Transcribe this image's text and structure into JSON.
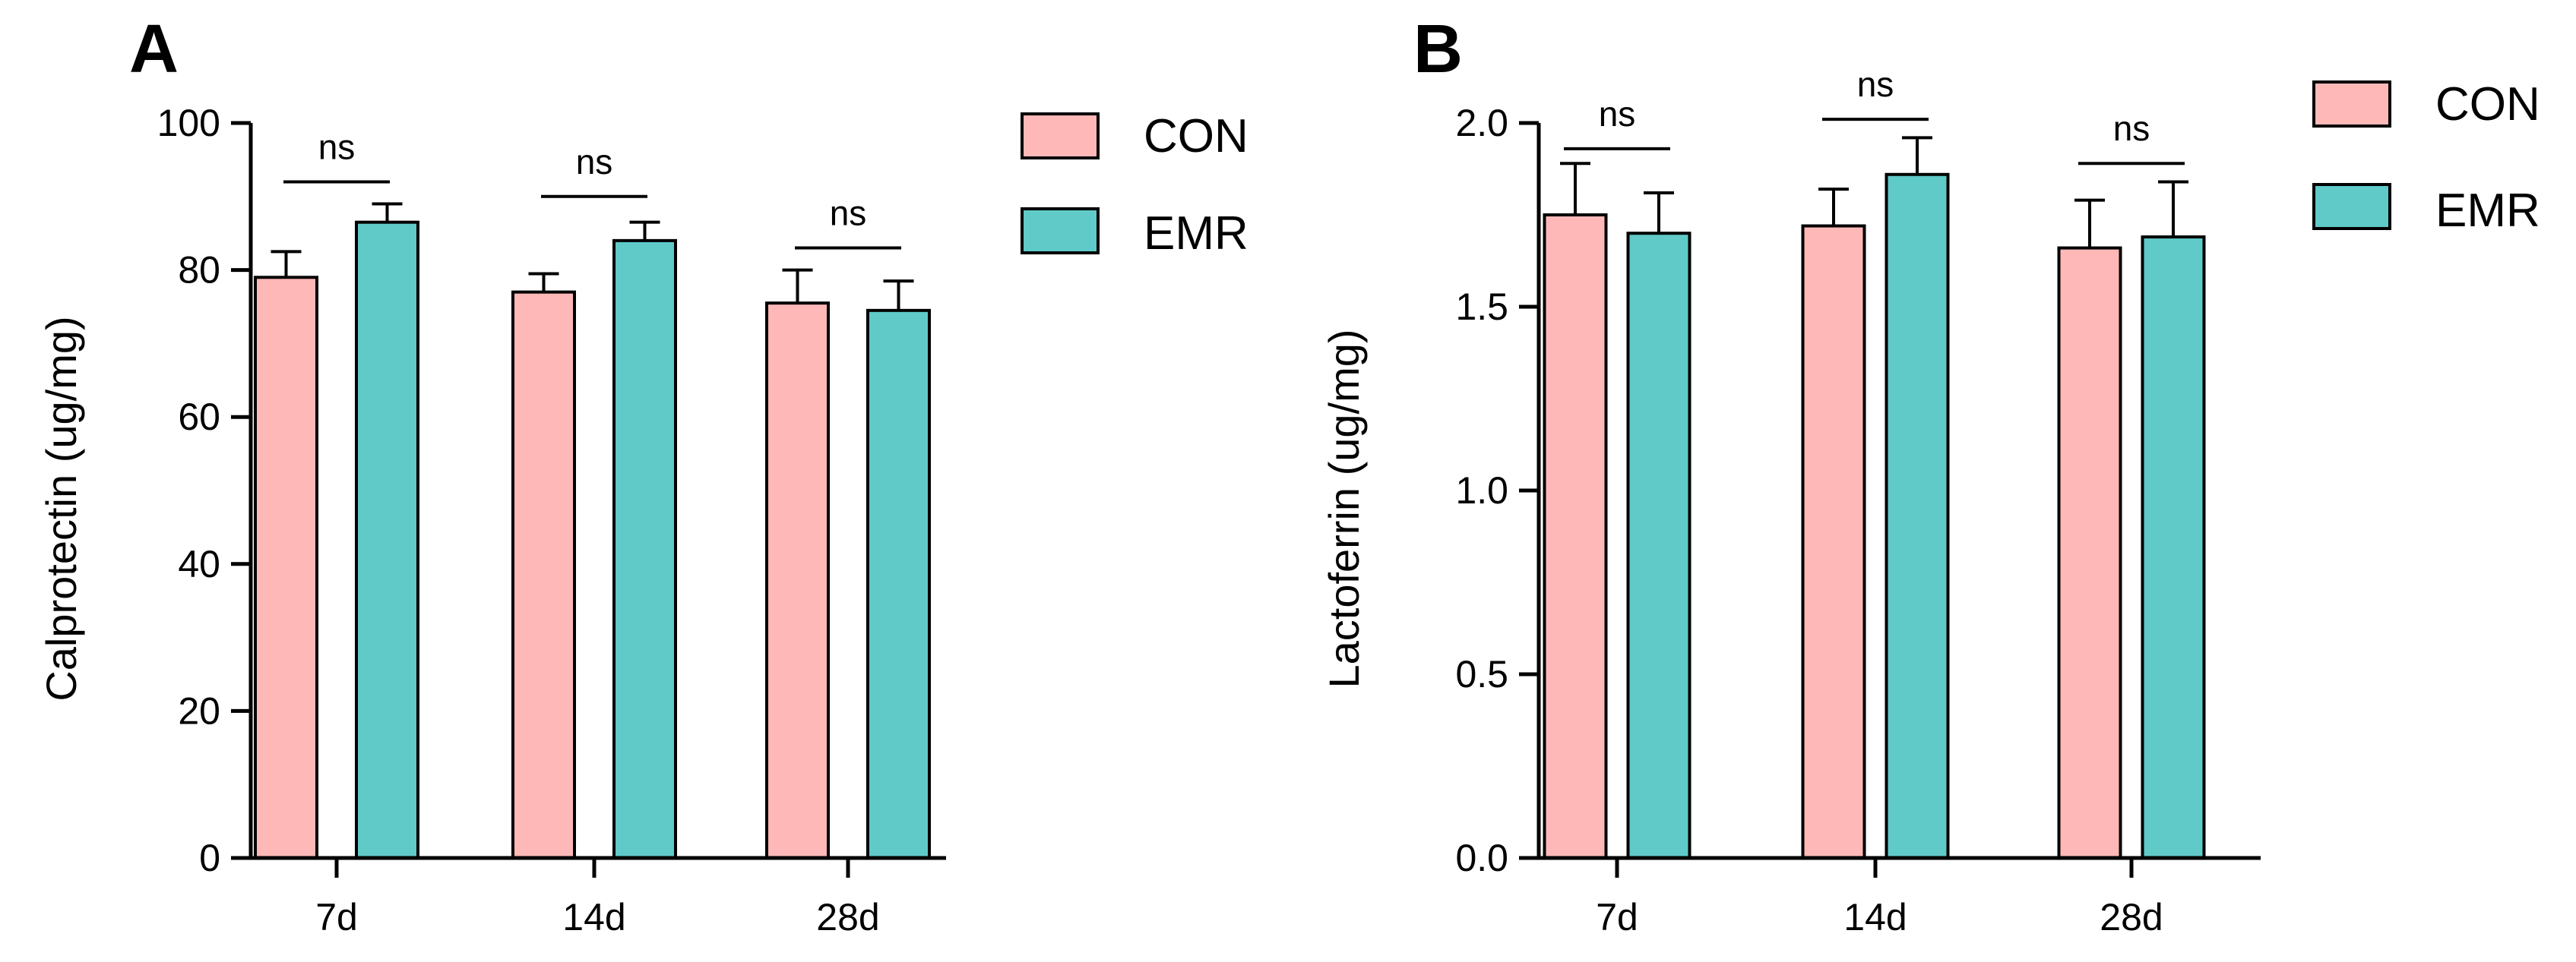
{
  "figure": {
    "legend": [
      {
        "name": "CON",
        "color": "#FFB8B8"
      },
      {
        "name": "EMR",
        "color": "#5FCAC8"
      }
    ]
  },
  "chart_data": [
    {
      "type": "bar",
      "panel": "A",
      "categories": [
        "7d",
        "14d",
        "28d"
      ],
      "series": [
        {
          "name": "CON",
          "values": [
            79,
            77,
            75.5
          ],
          "errors": [
            3.5,
            2.5,
            4.5
          ]
        },
        {
          "name": "EMR",
          "values": [
            86.5,
            84,
            74.5
          ],
          "errors": [
            2.5,
            2.5,
            4
          ]
        }
      ],
      "ylabel": "Calprotectin (ug/mg)",
      "xlabel": "",
      "ylim": [
        0,
        100
      ],
      "yticks": [
        0,
        20,
        40,
        60,
        80,
        100
      ],
      "ytick_labels": [
        "0",
        "20",
        "40",
        "60",
        "80",
        "100"
      ],
      "significance": [
        {
          "category": "7d",
          "label": "ns",
          "level": 92
        },
        {
          "category": "14d",
          "label": "ns",
          "level": 90
        },
        {
          "category": "28d",
          "label": "ns",
          "level": 83
        }
      ],
      "legend_position": "right"
    },
    {
      "type": "bar",
      "panel": "B",
      "categories": [
        "7d",
        "14d",
        "28d"
      ],
      "series": [
        {
          "name": "CON",
          "values": [
            1.75,
            1.72,
            1.66
          ],
          "errors": [
            0.14,
            0.1,
            0.13
          ]
        },
        {
          "name": "EMR",
          "values": [
            1.7,
            1.86,
            1.69
          ],
          "errors": [
            0.11,
            0.1,
            0.15
          ]
        }
      ],
      "ylabel": "Lactoferrin (ug/mg)",
      "xlabel": "",
      "ylim": [
        0,
        2.0
      ],
      "yticks": [
        0,
        0.5,
        1.0,
        1.5,
        2.0
      ],
      "ytick_labels": [
        "0.0",
        "0.5",
        "1.0",
        "1.5",
        "2.0"
      ],
      "significance": [
        {
          "category": "7d",
          "label": "ns",
          "level": 1.93
        },
        {
          "category": "14d",
          "label": "ns",
          "level": 2.01
        },
        {
          "category": "28d",
          "label": "ns",
          "level": 1.89
        }
      ],
      "legend_position": "right"
    }
  ]
}
